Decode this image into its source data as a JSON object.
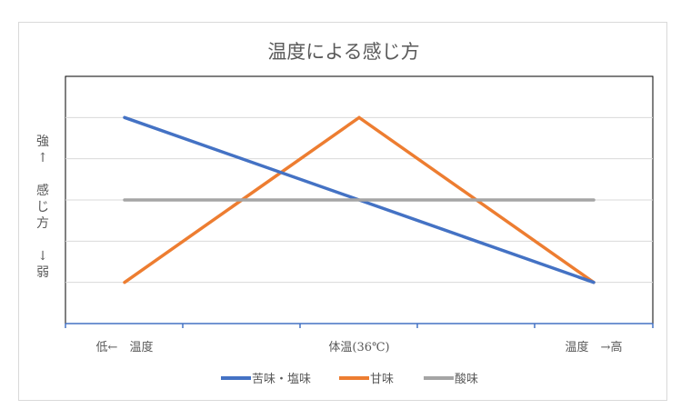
{
  "chart_data": {
    "type": "line",
    "title": "温度による感じ方",
    "ylabel_lines": [
      "強",
      "↑",
      "",
      "感",
      "じ",
      "方",
      "",
      "↓",
      "弱"
    ],
    "x": [
      "低←　温度",
      "体温(36℃)",
      "温度　→高"
    ],
    "series": [
      {
        "name": "苦味・塩味",
        "color": "#4472c4",
        "values": [
          5,
          3,
          1
        ]
      },
      {
        "name": "甘味",
        "color": "#ed7d31",
        "values": [
          1,
          5,
          1
        ]
      },
      {
        "name": "酸味",
        "color": "#a5a5a5",
        "values": [
          3,
          3,
          3
        ]
      }
    ],
    "ylim": [
      0,
      6
    ],
    "grid": true,
    "legend": "bottom"
  }
}
